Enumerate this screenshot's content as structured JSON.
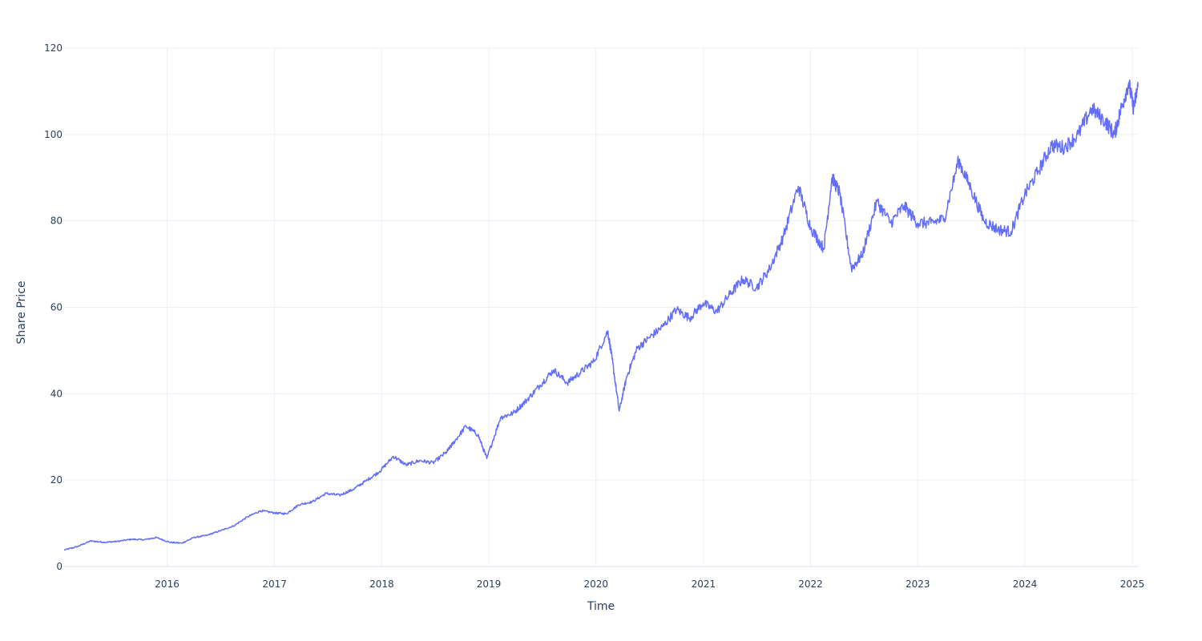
{
  "chart_data": {
    "type": "line",
    "xlabel": "Time",
    "ylabel": "Share Price",
    "xlim": [
      "2015-01-15",
      "2025-01-20"
    ],
    "ylim": [
      0,
      120
    ],
    "grid": true,
    "legend": "none",
    "line_color": "#636efa",
    "grid_color": "#ebf0f8",
    "text_color": "#2a3f5f",
    "x_ticks": [
      "2016",
      "2017",
      "2018",
      "2019",
      "2020",
      "2021",
      "2022",
      "2023",
      "2024",
      "2025"
    ],
    "y_ticks": [
      "0",
      "20",
      "40",
      "60",
      "80",
      "100",
      "120"
    ],
    "series": [
      {
        "x": [
          "2015-01-15",
          "2015-03-01",
          "2015-04-15",
          "2015-06-01",
          "2015-07-15",
          "2015-09-01",
          "2015-10-15",
          "2015-11-25",
          "2016-01-10",
          "2016-02-20",
          "2016-04-01",
          "2016-05-15",
          "2016-07-01",
          "2016-08-15",
          "2016-10-01",
          "2016-11-15",
          "2017-01-01",
          "2017-02-10",
          "2017-03-25",
          "2017-05-10",
          "2017-06-25",
          "2017-08-10",
          "2017-09-25",
          "2017-11-10",
          "2017-12-25",
          "2018-02-10",
          "2018-03-25",
          "2018-05-10",
          "2018-06-25",
          "2018-08-10",
          "2018-09-01",
          "2018-10-15",
          "2018-11-25",
          "2018-12-25",
          "2019-02-10",
          "2019-03-25",
          "2019-05-10",
          "2019-06-25",
          "2019-08-10",
          "2019-09-25",
          "2019-11-10",
          "2019-12-25",
          "2020-02-10",
          "2020-02-25",
          "2020-03-20",
          "2020-04-15",
          "2020-05-20",
          "2020-07-01",
          "2020-08-15",
          "2020-10-01",
          "2020-11-15",
          "2020-12-31",
          "2021-02-15",
          "2021-04-01",
          "2021-05-15",
          "2021-07-01",
          "2021-08-15",
          "2021-10-01",
          "2021-11-20",
          "2022-01-01",
          "2022-02-15",
          "2022-03-15",
          "2022-04-10",
          "2022-05-20",
          "2022-06-25",
          "2022-08-15",
          "2022-10-01",
          "2022-11-15",
          "2022-12-31",
          "2023-02-15",
          "2023-04-01",
          "2023-05-20",
          "2023-07-01",
          "2023-08-15",
          "2023-10-01",
          "2023-11-15",
          "2023-12-31",
          "2024-02-15",
          "2024-04-01",
          "2024-05-15",
          "2024-07-01",
          "2024-08-15",
          "2024-10-01",
          "2024-11-01",
          "2024-11-20",
          "2024-12-20",
          "2025-01-05",
          "2025-01-20"
        ],
        "y": [
          3.8,
          4.6,
          5.9,
          5.6,
          5.8,
          6.3,
          6.2,
          6.7,
          5.6,
          5.4,
          6.7,
          7.2,
          8.3,
          9.4,
          11.5,
          12.9,
          12.4,
          12.2,
          14.3,
          15.0,
          16.9,
          16.5,
          17.8,
          19.9,
          22.0,
          25.5,
          23.5,
          24.5,
          24.0,
          26.5,
          28.5,
          32.5,
          30.5,
          25.0,
          34.5,
          35.5,
          38.5,
          42.0,
          45.5,
          42.5,
          45.0,
          47.5,
          54.5,
          48.0,
          36.0,
          44.0,
          50.5,
          53.0,
          55.5,
          59.5,
          57.5,
          61.0,
          59.0,
          63.0,
          66.5,
          64.5,
          69.0,
          76.5,
          88.0,
          78.5,
          73.5,
          90.0,
          86.5,
          69.0,
          72.0,
          84.5,
          79.5,
          83.5,
          79.5,
          79.5,
          80.5,
          94.0,
          87.5,
          80.0,
          78.0,
          77.5,
          86.0,
          91.5,
          97.5,
          97.0,
          100.0,
          106.0,
          103.0,
          100.0,
          105.0,
          112.0,
          106.0,
          111.0
        ]
      }
    ]
  }
}
